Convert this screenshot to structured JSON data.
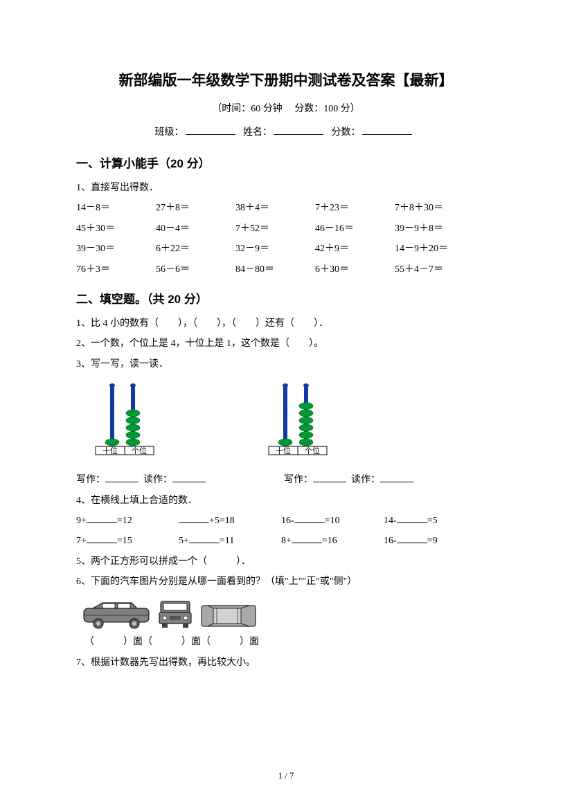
{
  "title": "新部编版一年级数学下册期中测试卷及答案【最新】",
  "subtitle": "（时间：60 分钟　 分数：100 分）",
  "info": {
    "class_label": "班级：",
    "name_label": "姓名：",
    "score_label": "分数："
  },
  "section1": {
    "heading": "一、计算小能手（20 分）",
    "q1_label": "1、直接写出得数．",
    "rows": [
      [
        "14－8＝",
        "27＋8＝",
        "38＋4＝",
        "7＋23＝",
        "7＋8＋30＝"
      ],
      [
        "45＋30＝",
        "40－4＝",
        "7＋52＝",
        "46－16＝",
        "39－9＋8＝"
      ],
      [
        "39－30＝",
        "6＋22＝",
        "32－9＝",
        "42＋9＝",
        "14－9＋20＝"
      ],
      [
        "76＋3＝",
        "56－6＝",
        "84－80＝",
        "6＋30＝",
        "55＋4－7＝"
      ]
    ]
  },
  "section2": {
    "heading": "二、填空题。（共 20 分）",
    "q1": "1、比 4 小的数有（　　），（　　），（　　）还有（　　）．",
    "q2": "2、一个数，个位上是 4，十位上是 1，这个数是（　　）。",
    "q3": "3、写一写，读一读．",
    "abacus1": {
      "tens_label": "十位",
      "ones_label": "个位",
      "tens_beads": 1,
      "ones_beads": 5
    },
    "abacus2": {
      "tens_label": "十位",
      "ones_label": "个位",
      "tens_beads": 1,
      "ones_beads": 6
    },
    "write_label": "写作：",
    "read_label": "读作：",
    "q4": "4、在横线上填上合适的数．",
    "eq_rows": [
      [
        {
          "pre": "9+",
          "post": "=12"
        },
        {
          "pre": "",
          "post": "+5=18"
        },
        {
          "pre": "16-",
          "post": "=10"
        },
        {
          "pre": "14-",
          "post": "=5"
        }
      ],
      [
        {
          "pre": "7+",
          "post": "=15"
        },
        {
          "pre": "5+",
          "post": "=11"
        },
        {
          "pre": "8+",
          "post": "=16"
        },
        {
          "pre": "16-",
          "post": "=9"
        }
      ]
    ],
    "q5": "5、两个正方形可以拼成一个（　　　）．",
    "q6": "6、下面的汽车图片分别是从哪一面看到的？（填\"上\"\"正\"或\"侧\"）",
    "car_labels": "（　　　）面（　　　）面（　　　）面",
    "q7": "7、根据计数器先写出得数，再比较大小。"
  },
  "colors": {
    "bead": "#009933",
    "rod": "#1239a5",
    "base": "#000000",
    "car": "#808080"
  },
  "page_number": "1 / 7"
}
